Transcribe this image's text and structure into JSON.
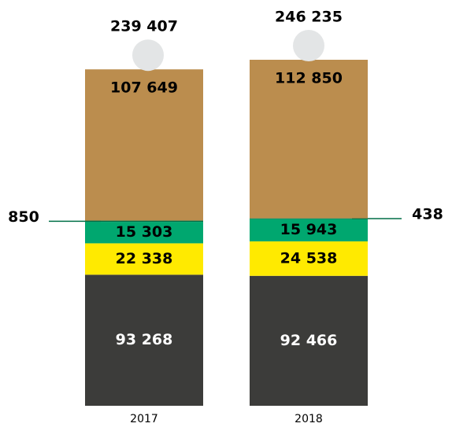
{
  "chart_data": {
    "type": "stacked-bar",
    "categories": [
      "2017",
      "2018"
    ],
    "series": [
      {
        "color": "#3c3c3a",
        "values": [
          93268,
          92466
        ],
        "value_labels": [
          "93 268",
          "92 466"
        ]
      },
      {
        "color": "#ffea00",
        "values": [
          22338,
          24538
        ],
        "value_labels": [
          "22 338",
          "24 538"
        ]
      },
      {
        "color": "#00a76f",
        "values": [
          15303,
          15943
        ],
        "value_labels": [
          "15 303",
          "15 943"
        ]
      },
      {
        "color": "#006f47",
        "values": [
          850,
          438
        ]
      },
      {
        "color": "#bb8d4e",
        "values": [
          107649,
          112850
        ],
        "value_labels": [
          "107 649",
          "112 850"
        ]
      }
    ],
    "totals": [
      239407,
      246235
    ],
    "total_labels": [
      "239 407",
      "246 235"
    ]
  }
}
